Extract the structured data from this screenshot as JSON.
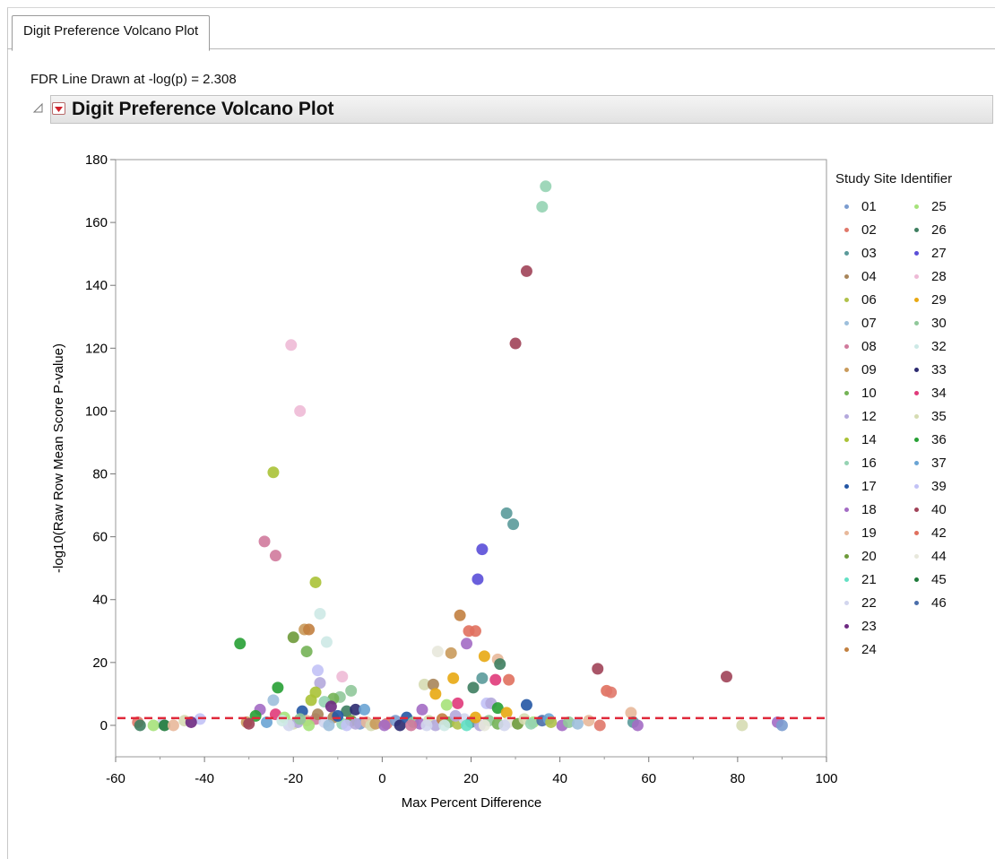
{
  "tab": {
    "label": "Digit Preference Volcano Plot"
  },
  "fdr_note": "FDR Line Drawn at -log(p) = 2.308",
  "section": {
    "title": "Digit Preference Volcano Plot"
  },
  "legend": {
    "title": "Study Site Identifier",
    "items": [
      {
        "label": "01",
        "color": "#7b9ccf"
      },
      {
        "label": "02",
        "color": "#e0786a"
      },
      {
        "label": "03",
        "color": "#5a9a9a"
      },
      {
        "label": "04",
        "color": "#a8855a"
      },
      {
        "label": "06",
        "color": "#b0c14a"
      },
      {
        "label": "07",
        "color": "#9dbfdc"
      },
      {
        "label": "08",
        "color": "#d07a9c"
      },
      {
        "label": "09",
        "color": "#c99a5b"
      },
      {
        "label": "10",
        "color": "#74b356"
      },
      {
        "label": "12",
        "color": "#b4a8dc"
      },
      {
        "label": "14",
        "color": "#aac236"
      },
      {
        "label": "16",
        "color": "#95d3b3"
      },
      {
        "label": "17",
        "color": "#2456a4"
      },
      {
        "label": "18",
        "color": "#a36bc4"
      },
      {
        "label": "19",
        "color": "#e8b89a"
      },
      {
        "label": "20",
        "color": "#6e9a3a"
      },
      {
        "label": "21",
        "color": "#63e0c4"
      },
      {
        "label": "22",
        "color": "#d2d6ee"
      },
      {
        "label": "23",
        "color": "#6e2a82"
      },
      {
        "label": "24",
        "color": "#c28040"
      },
      {
        "label": "25",
        "color": "#a6e27a"
      },
      {
        "label": "26",
        "color": "#3e7e60"
      },
      {
        "label": "27",
        "color": "#5a4ed8"
      },
      {
        "label": "28",
        "color": "#eebad6"
      },
      {
        "label": "29",
        "color": "#e8a812"
      },
      {
        "label": "30",
        "color": "#90c89a"
      },
      {
        "label": "32",
        "color": "#cde9e6"
      },
      {
        "label": "33",
        "color": "#2c2a70"
      },
      {
        "label": "34",
        "color": "#e03a7a"
      },
      {
        "label": "35",
        "color": "#d6dcb2"
      },
      {
        "label": "36",
        "color": "#27a034"
      },
      {
        "label": "37",
        "color": "#6aa4d4"
      },
      {
        "label": "39",
        "color": "#c2c2f6"
      },
      {
        "label": "40",
        "color": "#a04258"
      },
      {
        "label": "42",
        "color": "#e0705e"
      },
      {
        "label": "44",
        "color": "#e8e8dc"
      },
      {
        "label": "45",
        "color": "#1e7a3a"
      },
      {
        "label": "46",
        "color": "#4a6eaa"
      }
    ]
  },
  "chart_data": {
    "type": "scatter",
    "title": "",
    "xlabel": "Max Percent Difference",
    "ylabel": "-log10(Raw Row Mean Score P-value)",
    "xlim": [
      -60,
      100
    ],
    "ylim": [
      -10,
      180
    ],
    "xticks": [
      "-60",
      "-40",
      "-20",
      "0",
      "20",
      "40",
      "60",
      "80",
      "100"
    ],
    "yticks": [
      "0",
      "20",
      "40",
      "60",
      "80",
      "100",
      "120",
      "140",
      "160",
      "180"
    ],
    "fdr_line_y": 2.308,
    "fdr_line_color": "#e0283a",
    "points": [
      {
        "x": 36.8,
        "y": 171.5,
        "site": "16"
      },
      {
        "x": 36.0,
        "y": 165.0,
        "site": "16"
      },
      {
        "x": 32.5,
        "y": 144.5,
        "site": "40"
      },
      {
        "x": 30.0,
        "y": 121.5,
        "site": "40"
      },
      {
        "x": -20.5,
        "y": 121.0,
        "site": "28"
      },
      {
        "x": -18.5,
        "y": 100.0,
        "site": "28"
      },
      {
        "x": -24.5,
        "y": 80.5,
        "site": "14"
      },
      {
        "x": 28.0,
        "y": 67.5,
        "site": "03"
      },
      {
        "x": 29.5,
        "y": 64.0,
        "site": "03"
      },
      {
        "x": -26.5,
        "y": 58.5,
        "site": "08"
      },
      {
        "x": 22.5,
        "y": 56.0,
        "site": "27"
      },
      {
        "x": -24.0,
        "y": 54.0,
        "site": "08"
      },
      {
        "x": 21.5,
        "y": 46.5,
        "site": "27"
      },
      {
        "x": -15.0,
        "y": 45.5,
        "site": "14"
      },
      {
        "x": -14.0,
        "y": 35.5,
        "site": "32"
      },
      {
        "x": 17.5,
        "y": 35.0,
        "site": "24"
      },
      {
        "x": -17.5,
        "y": 30.5,
        "site": "09"
      },
      {
        "x": -16.5,
        "y": 30.5,
        "site": "24"
      },
      {
        "x": 19.5,
        "y": 30.0,
        "site": "42"
      },
      {
        "x": 21.0,
        "y": 30.0,
        "site": "42"
      },
      {
        "x": -20.0,
        "y": 28.0,
        "site": "20"
      },
      {
        "x": -12.5,
        "y": 26.5,
        "site": "32"
      },
      {
        "x": -32.0,
        "y": 26.0,
        "site": "36"
      },
      {
        "x": 19.0,
        "y": 26.0,
        "site": "18"
      },
      {
        "x": 12.5,
        "y": 23.5,
        "site": "44"
      },
      {
        "x": -17.0,
        "y": 23.5,
        "site": "10"
      },
      {
        "x": 15.5,
        "y": 23.0,
        "site": "09"
      },
      {
        "x": 23.0,
        "y": 22.0,
        "site": "29"
      },
      {
        "x": 26.0,
        "y": 21.0,
        "site": "19"
      },
      {
        "x": 26.5,
        "y": 19.5,
        "site": "26"
      },
      {
        "x": 48.5,
        "y": 18.0,
        "site": "40"
      },
      {
        "x": -14.5,
        "y": 17.5,
        "site": "39"
      },
      {
        "x": -9.0,
        "y": 15.5,
        "site": "28"
      },
      {
        "x": 77.5,
        "y": 15.5,
        "site": "40"
      },
      {
        "x": 16.0,
        "y": 15.0,
        "site": "29"
      },
      {
        "x": 22.5,
        "y": 15.0,
        "site": "03"
      },
      {
        "x": 25.5,
        "y": 14.5,
        "site": "34"
      },
      {
        "x": 28.5,
        "y": 14.5,
        "site": "42"
      },
      {
        "x": -14.0,
        "y": 13.5,
        "site": "12"
      },
      {
        "x": 9.5,
        "y": 13.0,
        "site": "35"
      },
      {
        "x": 11.5,
        "y": 13.0,
        "site": "04"
      },
      {
        "x": -23.5,
        "y": 12.0,
        "site": "36"
      },
      {
        "x": 20.5,
        "y": 12.0,
        "site": "26"
      },
      {
        "x": 50.5,
        "y": 11.0,
        "site": "42"
      },
      {
        "x": 51.5,
        "y": 10.5,
        "site": "02"
      },
      {
        "x": -7.0,
        "y": 11.0,
        "site": "30"
      },
      {
        "x": -15.0,
        "y": 10.5,
        "site": "14"
      },
      {
        "x": 12.0,
        "y": 10.0,
        "site": "29"
      },
      {
        "x": -9.5,
        "y": 9.0,
        "site": "30"
      },
      {
        "x": -11.0,
        "y": 8.5,
        "site": "10"
      },
      {
        "x": -24.5,
        "y": 8.0,
        "site": "07"
      },
      {
        "x": -16.0,
        "y": 8.0,
        "site": "14"
      },
      {
        "x": -13.0,
        "y": 7.5,
        "site": "16"
      },
      {
        "x": 17.0,
        "y": 7.0,
        "site": "34"
      },
      {
        "x": 23.5,
        "y": 7.0,
        "site": "39"
      },
      {
        "x": 24.5,
        "y": 7.0,
        "site": "12"
      },
      {
        "x": 14.5,
        "y": 6.5,
        "site": "25"
      },
      {
        "x": 32.5,
        "y": 6.5,
        "site": "17"
      },
      {
        "x": -11.5,
        "y": 6.0,
        "site": "23"
      },
      {
        "x": 26.0,
        "y": 5.5,
        "site": "36"
      },
      {
        "x": -27.5,
        "y": 5.0,
        "site": "18"
      },
      {
        "x": -8.0,
        "y": 4.5,
        "site": "26"
      },
      {
        "x": -18.0,
        "y": 4.5,
        "site": "17"
      },
      {
        "x": 56.0,
        "y": 4.0,
        "site": "19"
      },
      {
        "x": -24.0,
        "y": 3.5,
        "site": "34"
      },
      {
        "x": -28.5,
        "y": 3.0,
        "site": "36"
      },
      {
        "x": 28.0,
        "y": 4.0,
        "site": "29"
      },
      {
        "x": -6.0,
        "y": 5.0,
        "site": "33"
      },
      {
        "x": -4.0,
        "y": 5.0,
        "site": "37"
      },
      {
        "x": -22.0,
        "y": 2.5,
        "site": "25"
      },
      {
        "x": -41.0,
        "y": 2.0,
        "site": "39"
      },
      {
        "x": -44.5,
        "y": 1.5,
        "site": "35"
      },
      {
        "x": -43.0,
        "y": 1.0,
        "site": "23"
      },
      {
        "x": -55.0,
        "y": 1.0,
        "site": "02"
      },
      {
        "x": -49.5,
        "y": 0.5,
        "site": "22"
      },
      {
        "x": -51.5,
        "y": 0.0,
        "site": "25"
      },
      {
        "x": -49.0,
        "y": 0.0,
        "site": "45"
      },
      {
        "x": -47.0,
        "y": 0.0,
        "site": "19"
      },
      {
        "x": -54.5,
        "y": 0.0,
        "site": "26"
      },
      {
        "x": -30.5,
        "y": 1.0,
        "site": "09"
      },
      {
        "x": -30.0,
        "y": 0.5,
        "site": "40"
      },
      {
        "x": -20.0,
        "y": 0.5,
        "site": "35"
      },
      {
        "x": -19.0,
        "y": 1.0,
        "site": "12"
      },
      {
        "x": -17.0,
        "y": 1.5,
        "site": "19"
      },
      {
        "x": -15.0,
        "y": 2.0,
        "site": "08"
      },
      {
        "x": -13.0,
        "y": 1.0,
        "site": "22"
      },
      {
        "x": -11.0,
        "y": 2.5,
        "site": "04"
      },
      {
        "x": -9.0,
        "y": 0.5,
        "site": "16"
      },
      {
        "x": -7.0,
        "y": 1.5,
        "site": "20"
      },
      {
        "x": -5.0,
        "y": 0.5,
        "site": "01"
      },
      {
        "x": -3.5,
        "y": 1.0,
        "site": "19"
      },
      {
        "x": -2.5,
        "y": 0.0,
        "site": "35"
      },
      {
        "x": 1.0,
        "y": 0.5,
        "site": "02"
      },
      {
        "x": 3.0,
        "y": 1.5,
        "site": "01"
      },
      {
        "x": 4.0,
        "y": 0.0,
        "site": "33"
      },
      {
        "x": 5.5,
        "y": 2.5,
        "site": "17"
      },
      {
        "x": 7.0,
        "y": 1.0,
        "site": "30"
      },
      {
        "x": 8.5,
        "y": 0.5,
        "site": "18"
      },
      {
        "x": 9.0,
        "y": 5.0,
        "site": "18"
      },
      {
        "x": 10.5,
        "y": 1.5,
        "site": "35"
      },
      {
        "x": 12.0,
        "y": 0.0,
        "site": "12"
      },
      {
        "x": 13.5,
        "y": 2.0,
        "site": "24"
      },
      {
        "x": 15.0,
        "y": 1.0,
        "site": "10"
      },
      {
        "x": 17.0,
        "y": 0.5,
        "site": "06"
      },
      {
        "x": 18.5,
        "y": 2.0,
        "site": "22"
      },
      {
        "x": 20.0,
        "y": 1.0,
        "site": "03"
      },
      {
        "x": 22.0,
        "y": 0.0,
        "site": "12"
      },
      {
        "x": 24.0,
        "y": 1.5,
        "site": "30"
      },
      {
        "x": 26.0,
        "y": 0.5,
        "site": "10"
      },
      {
        "x": 28.5,
        "y": 1.0,
        "site": "44"
      },
      {
        "x": 30.5,
        "y": 0.5,
        "site": "20"
      },
      {
        "x": 32.0,
        "y": 2.0,
        "site": "35"
      },
      {
        "x": 34.0,
        "y": 1.0,
        "site": "25"
      },
      {
        "x": 36.0,
        "y": 1.5,
        "site": "46"
      },
      {
        "x": 37.5,
        "y": 2.0,
        "site": "37"
      },
      {
        "x": 40.5,
        "y": 0.0,
        "site": "18"
      },
      {
        "x": 42.0,
        "y": 1.0,
        "site": "30"
      },
      {
        "x": 44.0,
        "y": 0.5,
        "site": "07"
      },
      {
        "x": 46.5,
        "y": 1.5,
        "site": "19"
      },
      {
        "x": 49.0,
        "y": 0.0,
        "site": "02"
      },
      {
        "x": 56.5,
        "y": 1.0,
        "site": "03"
      },
      {
        "x": 57.5,
        "y": 0.0,
        "site": "18"
      },
      {
        "x": 81.0,
        "y": 0.0,
        "site": "35"
      },
      {
        "x": 89.0,
        "y": 1.0,
        "site": "18"
      },
      {
        "x": 90.0,
        "y": 0.0,
        "site": "01"
      },
      {
        "x": -21.0,
        "y": 0.0,
        "site": "22"
      },
      {
        "x": -16.5,
        "y": 0.0,
        "site": "25"
      },
      {
        "x": -12.0,
        "y": 0.0,
        "site": "07"
      },
      {
        "x": -8.0,
        "y": 0.0,
        "site": "39"
      },
      {
        "x": -6.0,
        "y": 0.5,
        "site": "12"
      },
      {
        "x": -1.5,
        "y": 0.5,
        "site": "09"
      },
      {
        "x": 0.5,
        "y": 0.0,
        "site": "18"
      },
      {
        "x": 6.5,
        "y": 0.0,
        "site": "08"
      },
      {
        "x": 10.0,
        "y": 0.0,
        "site": "22"
      },
      {
        "x": 14.0,
        "y": 0.0,
        "site": "32"
      },
      {
        "x": 19.0,
        "y": 0.0,
        "site": "21"
      },
      {
        "x": 23.0,
        "y": 0.0,
        "site": "44"
      },
      {
        "x": 27.5,
        "y": 0.0,
        "site": "22"
      },
      {
        "x": -26.0,
        "y": 1.0,
        "site": "37"
      },
      {
        "x": -22.5,
        "y": 1.5,
        "site": "32"
      },
      {
        "x": -10.0,
        "y": 3.0,
        "site": "17"
      },
      {
        "x": -14.5,
        "y": 3.5,
        "site": "04"
      },
      {
        "x": -18.5,
        "y": 2.0,
        "site": "30"
      },
      {
        "x": 16.5,
        "y": 3.0,
        "site": "12"
      },
      {
        "x": 21.0,
        "y": 2.5,
        "site": "29"
      },
      {
        "x": 33.5,
        "y": 0.5,
        "site": "16"
      },
      {
        "x": 38.0,
        "y": 1.0,
        "site": "06"
      }
    ]
  }
}
